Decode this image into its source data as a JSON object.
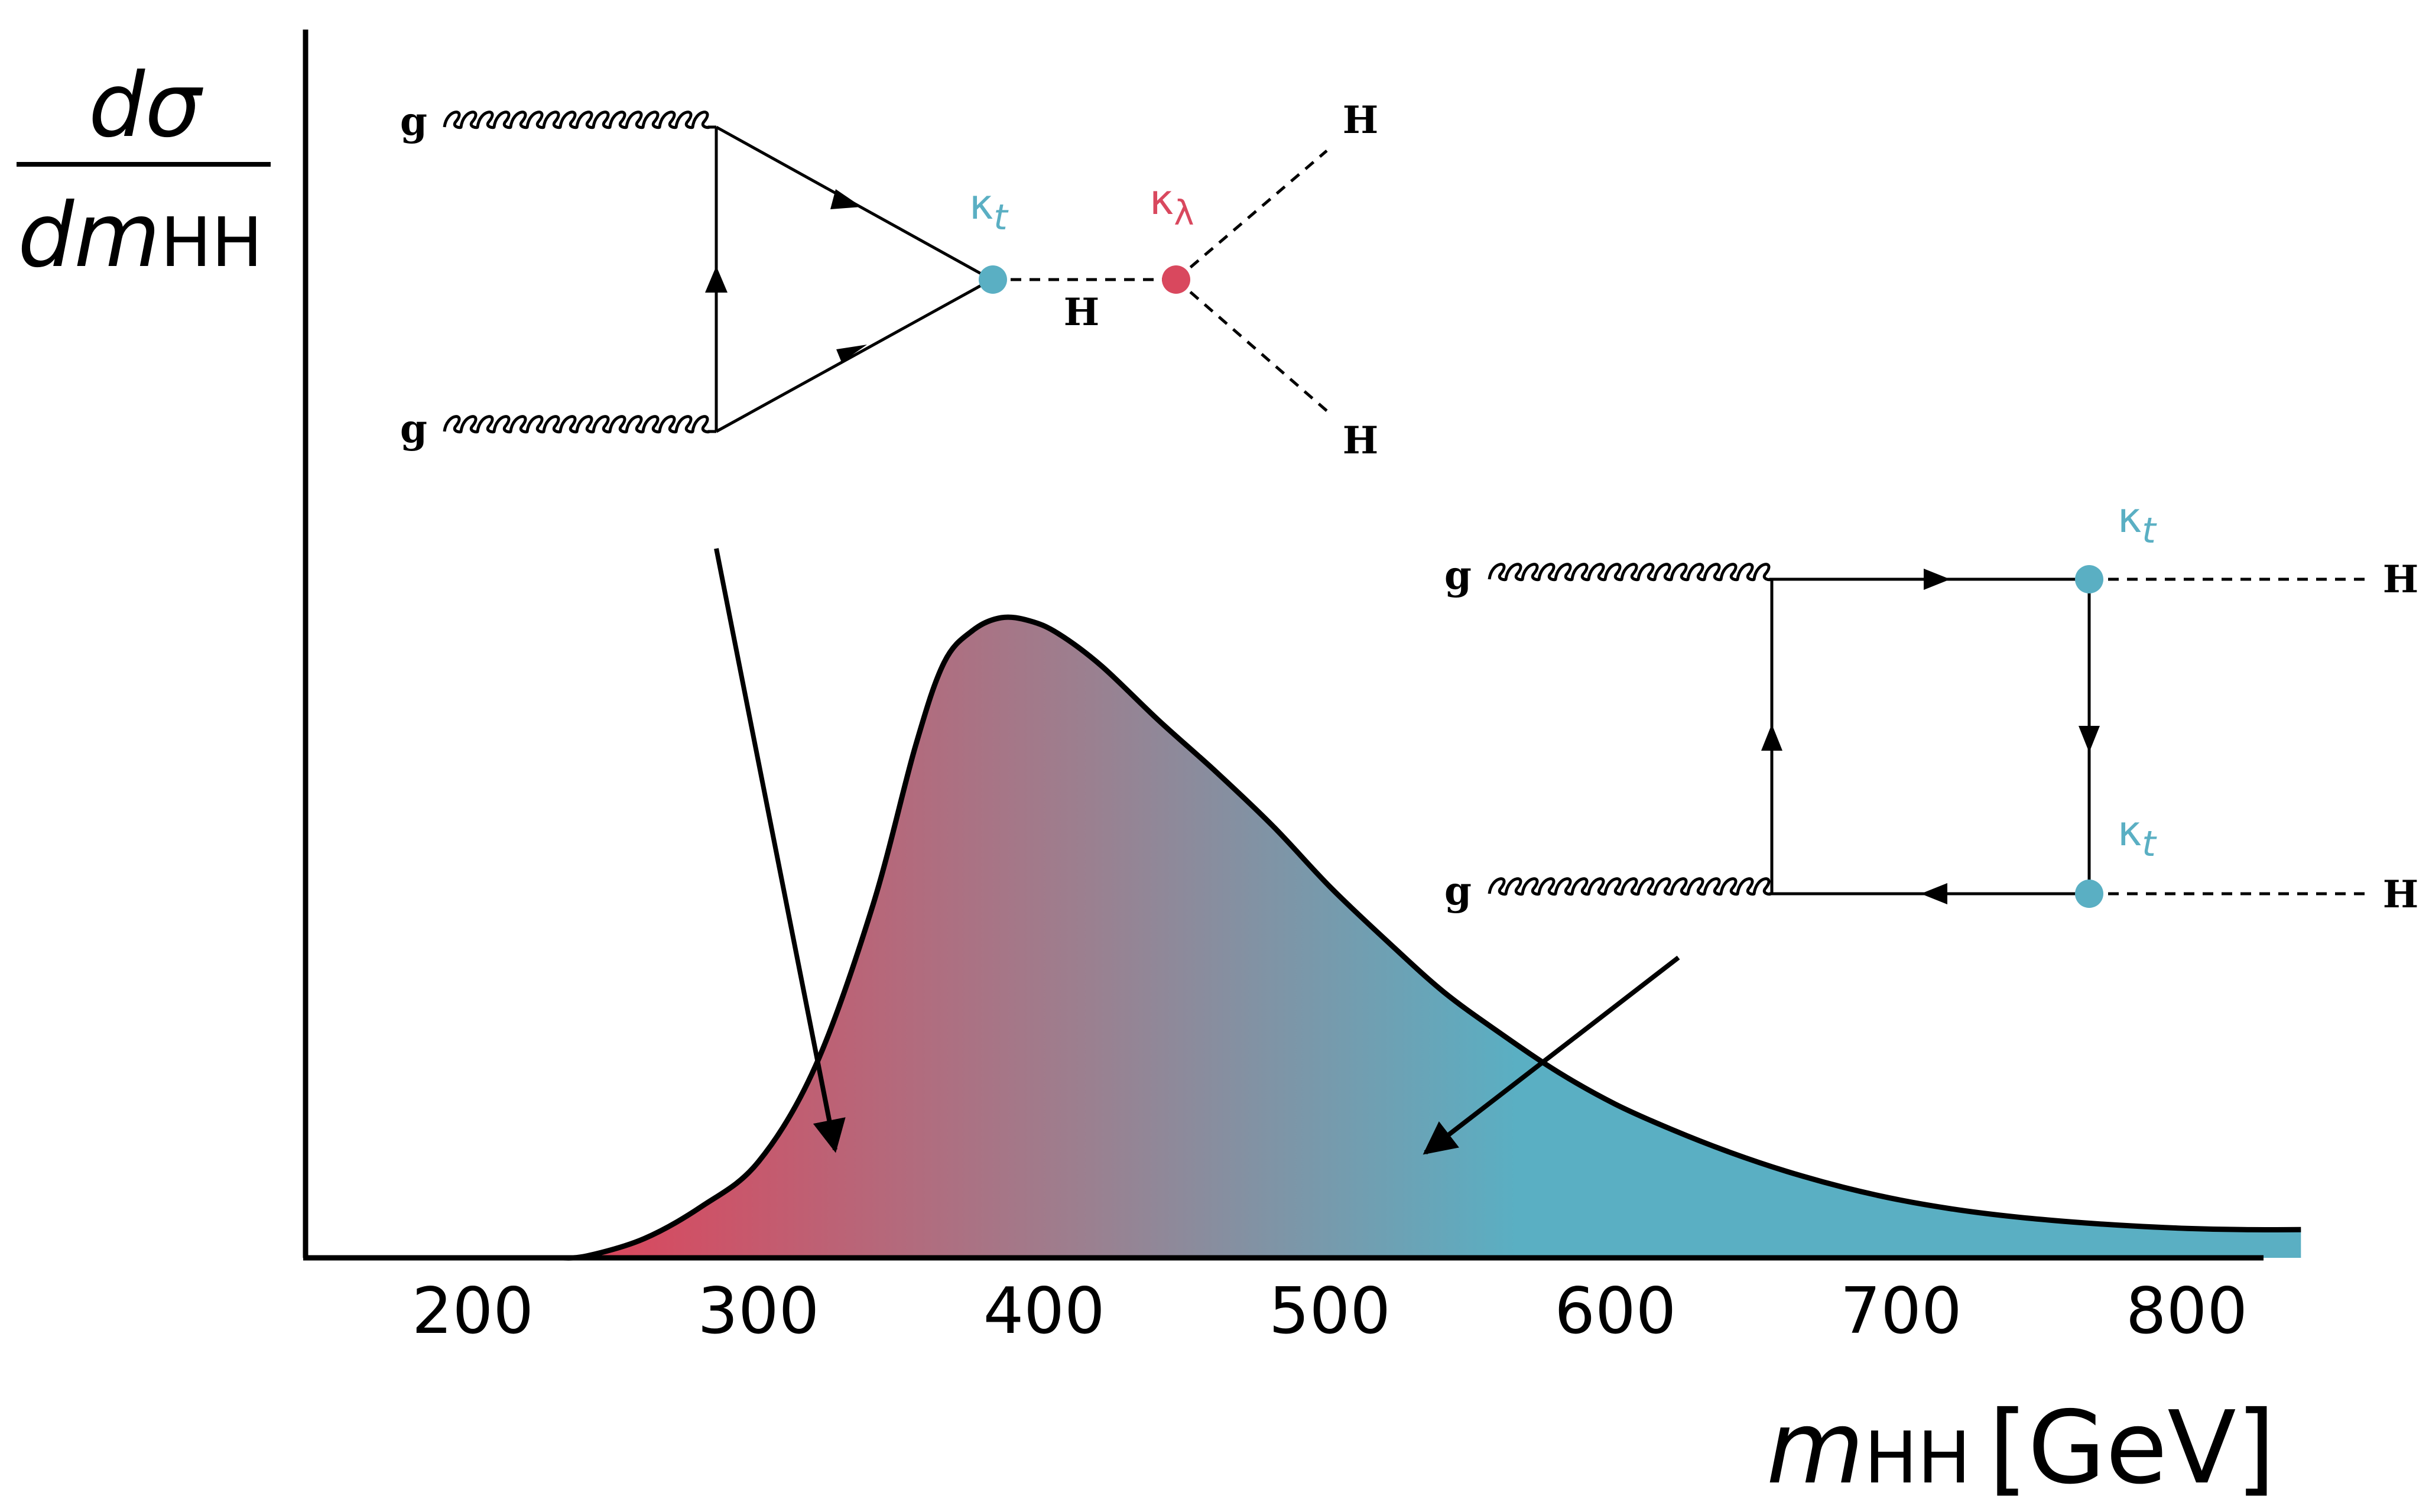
{
  "colors": {
    "red": "#d9485e",
    "teal": "#5aafc3",
    "axis": "#000000"
  },
  "y_label": {
    "numerator": "dσ",
    "denominator_main": "dm",
    "denominator_sub": "HH"
  },
  "x_label": {
    "main": "m",
    "sub": "HH",
    "unit": "[GeV]"
  },
  "chart_data": {
    "type": "area",
    "title": "",
    "xlabel": "m_HH [GeV]",
    "ylabel": "dσ/dm_HH",
    "x_ticks": [
      200,
      300,
      400,
      500,
      600,
      700,
      800
    ],
    "xlim": [
      145,
      840
    ],
    "ylim": [
      0,
      1
    ],
    "x": [
      230,
      240,
      260,
      280,
      300,
      320,
      340,
      355,
      365,
      375,
      385,
      395,
      405,
      420,
      440,
      460,
      480,
      500,
      520,
      540,
      560,
      580,
      600,
      620,
      640,
      660,
      680,
      700,
      720,
      740,
      760,
      780,
      800,
      820,
      840
    ],
    "y": [
      0,
      0.003,
      0.03,
      0.08,
      0.15,
      0.3,
      0.55,
      0.8,
      0.93,
      0.98,
      1.0,
      0.995,
      0.975,
      0.925,
      0.84,
      0.76,
      0.675,
      0.58,
      0.495,
      0.415,
      0.35,
      0.29,
      0.24,
      0.2,
      0.165,
      0.135,
      0.11,
      0.09,
      0.075,
      0.064,
      0.056,
      0.05,
      0.046,
      0.044,
      0.044
    ]
  },
  "triangle_diagram": {
    "g_top": "g",
    "g_bottom": "g",
    "kappa_t": "κ",
    "kappa_t_sub": "t",
    "kappa_lambda": "κ",
    "kappa_lambda_sub": "λ",
    "h_mid": "H",
    "h_out_top": "H",
    "h_out_bottom": "H"
  },
  "box_diagram": {
    "g_top": "g",
    "g_bottom": "g",
    "kappa_t_top": "κ",
    "kappa_t_top_sub": "t",
    "kappa_t_bottom": "κ",
    "kappa_t_bottom_sub": "t",
    "h_out_top": "H",
    "h_out_bottom": "H"
  }
}
